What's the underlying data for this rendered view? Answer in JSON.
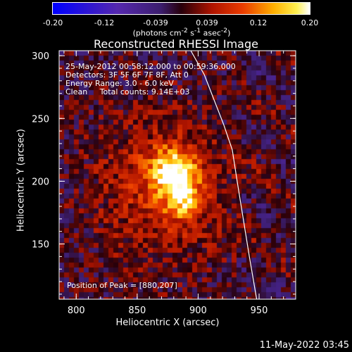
{
  "colorbar": {
    "ticks": [
      "-0.20",
      "-0.12",
      "-0.039",
      "0.039",
      "0.12",
      "0.20"
    ],
    "unit_html": "(photons cm<sup>-2</sup> s<sup>-1</sup> asec<sup>-2</sup>)"
  },
  "chart_data": {
    "type": "heatmap",
    "title": "Reconstructed RHESSI Image",
    "xlabel": "Heliocentric X (arcsec)",
    "ylabel": "Heliocentric Y (arcsec)",
    "xlim": [
      786,
      980
    ],
    "ylim": [
      106,
      304
    ],
    "xticks": [
      800,
      850,
      900,
      950
    ],
    "yticks": [
      150,
      200,
      250,
      300
    ],
    "color_range": [
      -0.2,
      0.2
    ],
    "colormap": "red-temperature with blue negatives",
    "annotations": [
      "25-May-2012 00:58:12.000 to 00:59:36.000",
      "Detectors: 3F 5F 6F 7F 8F, Att 0",
      "Energy Range: 3.0 - 6.0 keV",
      "Clean     Total counts: 9.14E+03"
    ],
    "peak_label": "Position of Peak = [880,207]",
    "peak_position": [
      880,
      207
    ],
    "limb_line": [
      [
        894,
        304
      ],
      [
        905,
        285
      ],
      [
        913,
        265
      ],
      [
        921,
        245
      ],
      [
        928,
        225
      ],
      [
        932,
        200
      ],
      [
        937,
        170
      ],
      [
        942,
        140
      ],
      [
        948,
        106
      ]
    ]
  },
  "timestamp": "11-May-2022 03:45"
}
